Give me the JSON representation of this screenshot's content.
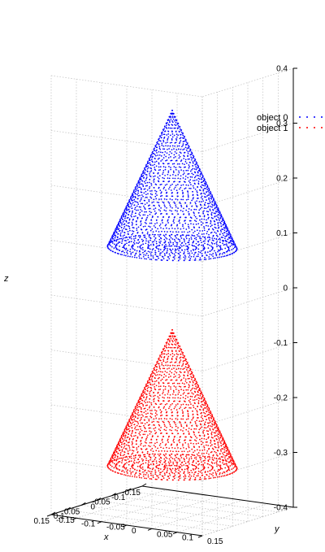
{
  "chart_data": {
    "type": "scatter",
    "dimensions": "3d",
    "title": "",
    "xlabel": "x",
    "ylabel": "y",
    "zlabel": "z",
    "xlim": [
      -0.15,
      0.15
    ],
    "ylim": [
      -0.15,
      0.15
    ],
    "zlim": [
      -0.4,
      0.4
    ],
    "x_ticks": [
      "-0.15",
      "-0.1",
      "-0.05",
      "0",
      "0.05",
      "0.1",
      "0.15"
    ],
    "y_ticks": [
      "-0.15",
      "-0.1",
      "-0.05",
      "0",
      "0.05",
      "0.1",
      "0.15"
    ],
    "z_ticks": [
      "-0.4",
      "-0.3",
      "-0.2",
      "-0.1",
      "0",
      "0.1",
      "0.2",
      "0.3",
      "0.4"
    ],
    "grid": true,
    "legend_position": "right",
    "series": [
      {
        "name": "object 0",
        "color": "#0000ff",
        "shape": "cone",
        "apex_z": 0.33,
        "base_z": 0.08,
        "base_radius": 0.11,
        "center_x": 0,
        "center_y": 0
      },
      {
        "name": "object 1",
        "color": "#ff0000",
        "shape": "cone",
        "apex_z": -0.07,
        "base_z": -0.32,
        "base_radius": 0.11,
        "center_x": 0,
        "center_y": 0
      }
    ]
  }
}
